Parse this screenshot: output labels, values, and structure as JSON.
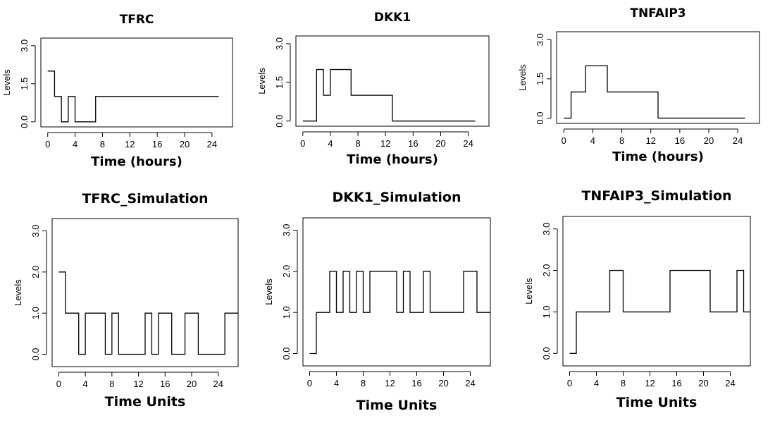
{
  "chart_data": [
    {
      "type": "line",
      "step": true,
      "title": "TFRC",
      "xlabel": "Time (hours)",
      "ylabel": "Levels",
      "xlim": [
        -1,
        27
      ],
      "ylim": [
        -0.2,
        3.3
      ],
      "xticks": [
        0,
        4,
        8,
        12,
        16,
        20,
        24
      ],
      "yticks": [
        0.0,
        1.5,
        3.0
      ],
      "ytick_labels": [
        "0.0",
        "1.5",
        "3.0"
      ],
      "grid": false,
      "x": [
        0,
        1,
        2,
        3,
        4,
        7,
        25
      ],
      "y": [
        2,
        1,
        0,
        1,
        0,
        1,
        1
      ]
    },
    {
      "type": "line",
      "step": true,
      "title": "DKK1",
      "xlabel": "Time (hours)",
      "ylabel": "Levels",
      "xlim": [
        -1,
        27
      ],
      "ylim": [
        -0.2,
        3.3
      ],
      "xticks": [
        0,
        4,
        8,
        12,
        16,
        20,
        24
      ],
      "yticks": [
        0.0,
        1.5,
        3.0
      ],
      "ytick_labels": [
        "0.0",
        "1.5",
        "3.0"
      ],
      "grid": false,
      "x": [
        0,
        2,
        3,
        4,
        7,
        13,
        25
      ],
      "y": [
        0,
        2,
        1,
        2,
        1,
        0,
        0
      ]
    },
    {
      "type": "line",
      "step": true,
      "title": "TNFAIP3",
      "xlabel": "Time (hours)",
      "ylabel": "Levels",
      "xlim": [
        -1,
        27
      ],
      "ylim": [
        -0.2,
        3.3
      ],
      "xticks": [
        0,
        4,
        8,
        12,
        16,
        20,
        24
      ],
      "yticks": [
        0.0,
        1.5,
        3.0
      ],
      "ytick_labels": [
        "0.0",
        "1.5",
        "3.0"
      ],
      "grid": false,
      "x": [
        0,
        1,
        3,
        6,
        13,
        25
      ],
      "y": [
        0,
        1,
        2,
        1,
        0,
        0
      ]
    },
    {
      "type": "line",
      "step": true,
      "title": "TFRC_Simulation",
      "xlabel": "Time Units",
      "ylabel": "Levels",
      "xlim": [
        -1,
        27
      ],
      "ylim": [
        -0.3,
        3.3
      ],
      "xticks": [
        0,
        4,
        8,
        12,
        16,
        20,
        24
      ],
      "yticks": [
        0.0,
        1.0,
        2.0,
        3.0
      ],
      "ytick_labels": [
        "0.0",
        "1.0",
        "2.0",
        "3.0"
      ],
      "grid": false,
      "x": [
        0,
        1,
        3,
        4,
        7,
        8,
        9,
        13,
        14,
        15,
        17,
        19,
        21,
        25,
        27
      ],
      "y": [
        2,
        1,
        0,
        1,
        0,
        1,
        0,
        1,
        0,
        1,
        0,
        1,
        0,
        1,
        1
      ]
    },
    {
      "type": "line",
      "step": true,
      "title": "DKK1_Simulation",
      "xlabel": "Time Units",
      "ylabel": "Levels",
      "xlim": [
        -1,
        27
      ],
      "ylim": [
        -0.3,
        3.3
      ],
      "xticks": [
        0,
        4,
        8,
        12,
        16,
        20,
        24
      ],
      "yticks": [
        0.0,
        1.0,
        2.0,
        3.0
      ],
      "ytick_labels": [
        "0.0",
        "1.0",
        "2.0",
        "3.0"
      ],
      "grid": false,
      "x": [
        0,
        1,
        3,
        4,
        5,
        6,
        7,
        8,
        9,
        13,
        14,
        15,
        17,
        18,
        23,
        25,
        27
      ],
      "y": [
        0,
        1,
        2,
        1,
        2,
        1,
        2,
        1,
        2,
        1,
        2,
        1,
        2,
        1,
        2,
        1,
        1
      ]
    },
    {
      "type": "line",
      "step": true,
      "title": "TNFAIP3_Simulation",
      "xlabel": "Time Units",
      "ylabel": "Levels",
      "xlim": [
        -1,
        27
      ],
      "ylim": [
        -0.3,
        3.3
      ],
      "xticks": [
        0,
        4,
        8,
        12,
        16,
        20,
        24
      ],
      "yticks": [
        0.0,
        1.0,
        2.0,
        3.0
      ],
      "ytick_labels": [
        "0.0",
        "1.0",
        "2.0",
        "3.0"
      ],
      "grid": false,
      "x": [
        0,
        1,
        6,
        8,
        15,
        21,
        25,
        26,
        27
      ],
      "y": [
        0,
        1,
        2,
        1,
        2,
        1,
        2,
        1,
        1
      ]
    }
  ]
}
